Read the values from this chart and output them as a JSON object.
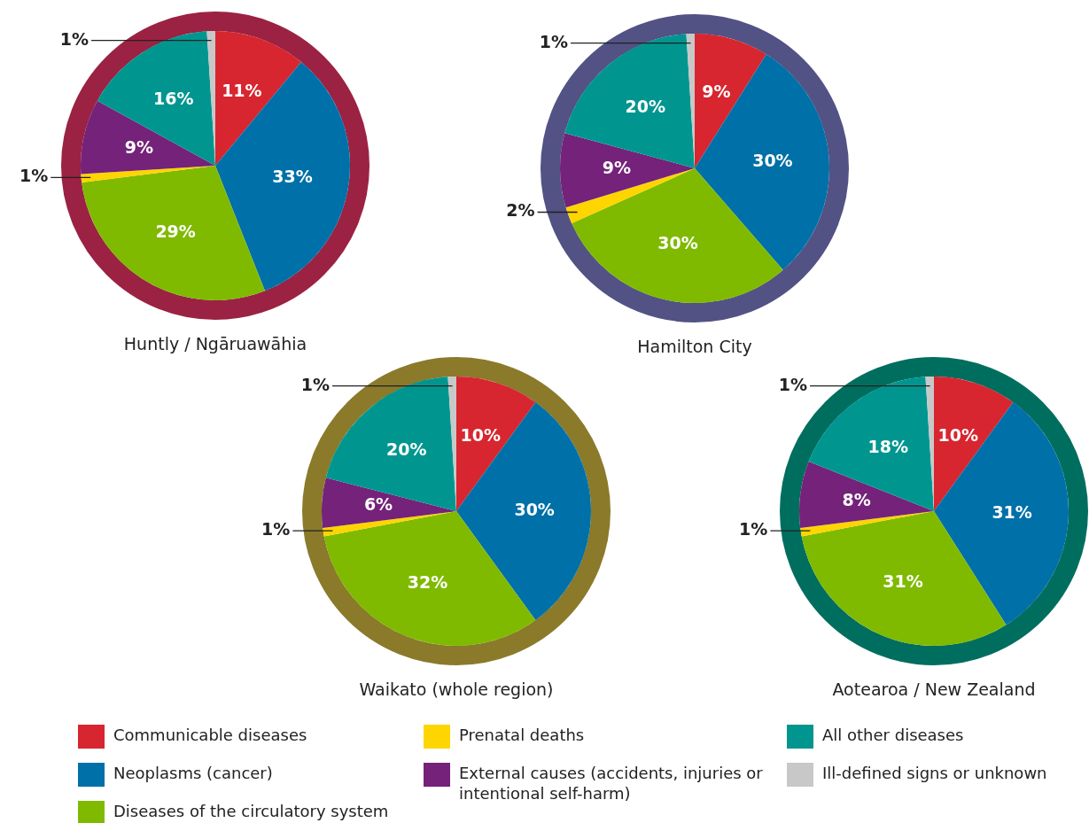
{
  "chart_data": [
    {
      "type": "pie",
      "title": "Huntly / Ngāruawāhia",
      "categories": [
        "Communicable diseases",
        "Neoplasms (cancer)",
        "Diseases of the circulatory system",
        "Prenatal deaths",
        "External causes (accidents, injuries or intentional self-harm)",
        "All other diseases",
        "Ill-defined signs or unknown"
      ],
      "values": [
        11,
        33,
        29,
        1,
        9,
        16,
        1
      ],
      "colors": [
        "#d7262f",
        "#0070a8",
        "#7fba00",
        "#ffd500",
        "#74227a",
        "#00968f",
        "#c8c8c8"
      ],
      "value_labels": [
        "11%",
        "33%",
        "29%",
        "1%",
        "9%",
        "16%",
        "1%"
      ],
      "legend": "bottom"
    },
    {
      "type": "pie",
      "title": "Hamilton City",
      "categories": [
        null,
        null,
        null,
        null,
        null,
        null,
        null
      ],
      "values": [
        9,
        30,
        30,
        2,
        9,
        20,
        1
      ],
      "colors": [
        "#d7262f",
        "#0070a8",
        "#7fba00",
        "#ffd500",
        "#74227a",
        "#00968f",
        "#c8c8c8"
      ],
      "value_labels": [
        "9%",
        "30%",
        "30%",
        "2%",
        "9%",
        "20%",
        "1%"
      ]
    },
    {
      "type": "pie",
      "title": "Waikato (whole region)",
      "categories": [
        null,
        null,
        null,
        null,
        null,
        null,
        null
      ],
      "values": [
        10,
        30,
        32,
        1,
        6,
        20,
        1
      ],
      "colors": [
        "#d7262f",
        "#0070a8",
        "#7fba00",
        "#ffd500",
        "#74227a",
        "#00968f",
        "#c8c8c8"
      ],
      "value_labels": [
        "10%",
        "30%",
        "32%",
        "1%",
        "6%",
        "20%",
        "1%"
      ]
    },
    {
      "type": "pie",
      "title": "Aotearoa / New Zealand",
      "categories": [
        null,
        null,
        null,
        null,
        null,
        null,
        null
      ],
      "values": [
        10,
        31,
        31,
        1,
        8,
        18,
        1
      ],
      "colors": [
        "#d7262f",
        "#0070a8",
        "#7fba00",
        "#ffd500",
        "#74227a",
        "#00968f",
        "#c8c8c8"
      ],
      "value_labels": [
        "10%",
        "31%",
        "31%",
        "1%",
        "8%",
        "18%",
        "1%"
      ]
    }
  ]
}
